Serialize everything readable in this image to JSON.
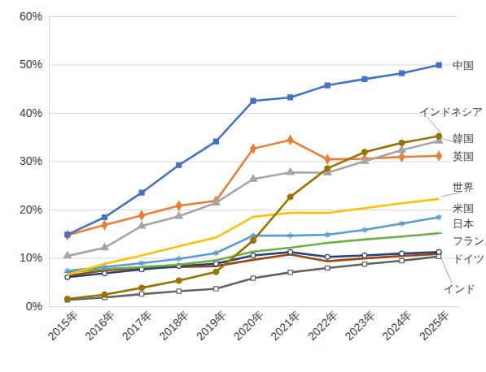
{
  "chart_data": {
    "type": "line",
    "categories": [
      "2015年",
      "2016年",
      "2017年",
      "2018年",
      "2019年",
      "2020年",
      "2021年",
      "2022年",
      "2023年",
      "2024年",
      "2025年"
    ],
    "series": [
      {
        "name": "中国",
        "color": "#4472c4",
        "marker": "square",
        "values": [
          14.8,
          18.4,
          23.5,
          29.2,
          34.1,
          42.5,
          43.2,
          45.7,
          47.0,
          48.2,
          49.9
        ]
      },
      {
        "name": "インドネシア",
        "color": "#997300",
        "marker": "circle",
        "values": [
          1.5,
          2.4,
          3.8,
          5.3,
          7.1,
          13.6,
          22.6,
          28.5,
          31.9,
          33.8,
          35.2
        ]
      },
      {
        "name": "韓国",
        "color": "#a5a5a5",
        "marker": "triangle",
        "values": [
          10.4,
          12.1,
          16.6,
          18.6,
          21.4,
          26.3,
          27.7,
          27.6,
          30.0,
          32.3,
          34.2
        ]
      },
      {
        "name": "英国",
        "color": "#ed7d31",
        "marker": "diamond",
        "values": [
          14.7,
          16.8,
          18.8,
          20.8,
          21.8,
          32.6,
          34.4,
          30.4,
          30.5,
          30.9,
          31.1
        ]
      },
      {
        "name": "世界",
        "color": "#ffc000",
        "marker": "none",
        "values": [
          6.5,
          8.8,
          10.5,
          12.4,
          14.2,
          18.5,
          19.3,
          19.3,
          20.3,
          21.3,
          22.2
        ]
      },
      {
        "name": "米国",
        "color": "#5b9bd5",
        "marker": "asterisk",
        "values": [
          7.3,
          8.1,
          8.9,
          9.8,
          11.0,
          14.6,
          14.6,
          14.8,
          15.8,
          17.1,
          18.4
        ]
      },
      {
        "name": "日本",
        "color": "#70ad47",
        "marker": "dash",
        "values": [
          7.0,
          7.7,
          8.1,
          8.6,
          9.5,
          11.3,
          12.1,
          13.1,
          13.8,
          14.4,
          15.1
        ]
      },
      {
        "name": "フランス",
        "color": "#264478",
        "marker": "open-circle",
        "values": [
          6.0,
          6.8,
          7.6,
          8.3,
          8.8,
          10.5,
          11.2,
          10.2,
          10.5,
          10.9,
          11.2
        ]
      },
      {
        "name": "ドイツ",
        "color": "#9e480e",
        "marker": "none",
        "values": [
          6.3,
          7.4,
          7.9,
          8.1,
          8.3,
          9.6,
          10.7,
          9.3,
          9.9,
          10.4,
          10.8
        ]
      },
      {
        "name": "インド",
        "color": "#636363",
        "marker": "open-square",
        "values": [
          1.3,
          1.8,
          2.5,
          3.1,
          3.6,
          5.8,
          7.0,
          7.9,
          8.7,
          9.4,
          10.3
        ]
      }
    ],
    "ylim": [
      0,
      60
    ],
    "yticks": [
      {
        "value": 0,
        "label": "0%"
      },
      {
        "value": 10,
        "label": "10%"
      },
      {
        "value": 20,
        "label": "20%"
      },
      {
        "value": 30,
        "label": "30%"
      },
      {
        "value": 40,
        "label": "40%"
      },
      {
        "value": 50,
        "label": "50%"
      },
      {
        "value": 60,
        "label": "60%"
      }
    ],
    "grid": true
  }
}
